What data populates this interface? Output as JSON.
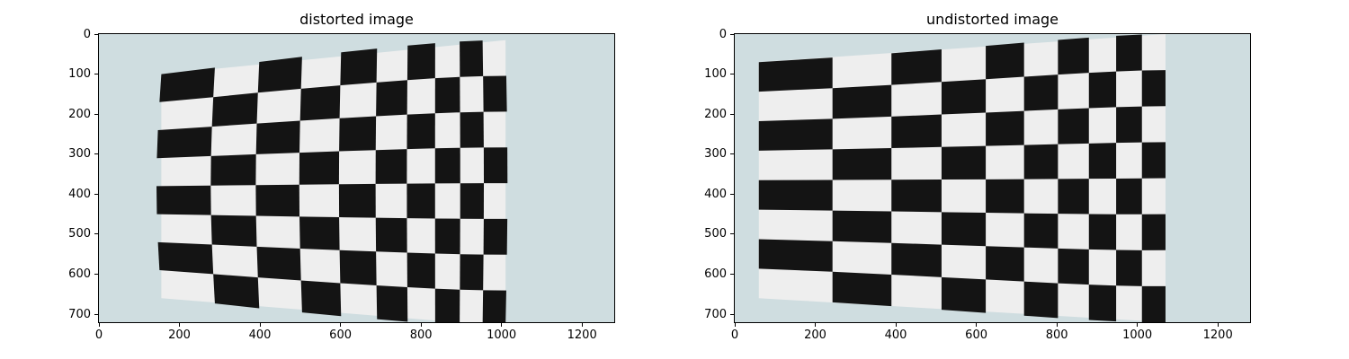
{
  "figure": {
    "panels": [
      {
        "title": "distorted image",
        "x_ticks": [
          "0",
          "200",
          "400",
          "600",
          "800",
          "1000",
          "1200"
        ],
        "y_ticks": [
          "0",
          "100",
          "200",
          "300",
          "400",
          "500",
          "600",
          "700"
        ]
      },
      {
        "title": "undistorted image",
        "x_ticks": [
          "0",
          "200",
          "400",
          "600",
          "800",
          "1000",
          "1200"
        ],
        "y_ticks": [
          "0",
          "100",
          "200",
          "300",
          "400",
          "500",
          "600",
          "700"
        ]
      }
    ],
    "x_tick_values": [
      0,
      200,
      400,
      600,
      800,
      1000,
      1200
    ],
    "y_tick_values": [
      0,
      100,
      200,
      300,
      400,
      500,
      600,
      700
    ],
    "image_width": 1280,
    "image_height": 720,
    "colors": {
      "wall": "#cfdde0",
      "paper": "#eeeeee",
      "square": "#141414"
    }
  }
}
